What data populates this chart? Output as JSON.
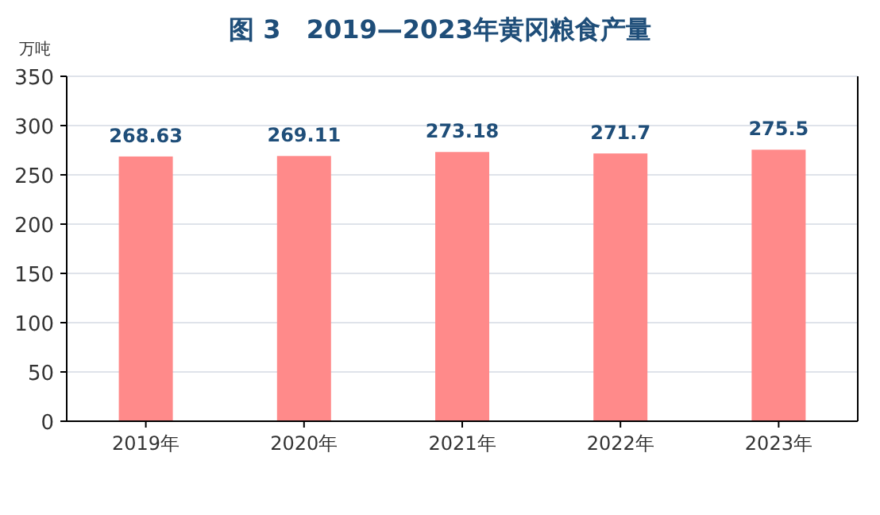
{
  "chart_data": {
    "type": "bar",
    "title": "图 3　2019—2023年黄冈粮食产量",
    "ylabel": "万吨",
    "categories": [
      "2019年",
      "2020年",
      "2021年",
      "2022年",
      "2023年"
    ],
    "values": [
      268.63,
      269.11,
      273.18,
      271.7,
      275.5
    ],
    "color": "#ff8a8a",
    "ylim": [
      0,
      350
    ],
    "yticks": [
      0,
      50,
      100,
      150,
      200,
      250,
      300,
      350
    ],
    "grid": "y",
    "data_labels": true
  }
}
